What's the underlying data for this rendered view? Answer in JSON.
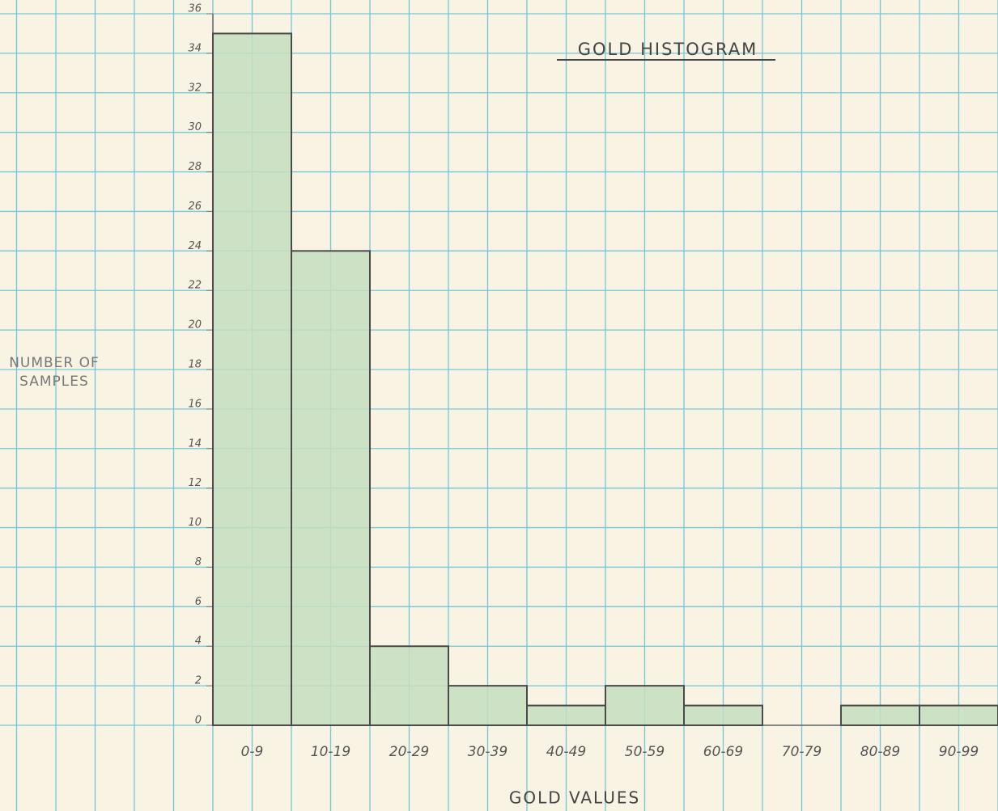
{
  "chart_data": {
    "type": "bar",
    "title": "GOLD HISTOGRAM",
    "y_label": "NUMBER OF SAMPLES",
    "x_label": "GOLD VALUES",
    "categories": [
      "0-9",
      "10-19",
      "20-29",
      "30-39",
      "40-49",
      "50-59",
      "60-69",
      "70-79",
      "80-89",
      "90-99"
    ],
    "values": [
      35,
      24,
      4,
      2,
      1,
      2,
      1,
      0,
      1,
      1
    ],
    "color": "#c6ddc0",
    "ylim": [
      0,
      36
    ],
    "yticks": [
      0,
      2,
      4,
      6,
      8,
      10,
      12,
      14,
      16,
      18,
      20,
      22,
      24,
      26,
      28,
      30,
      32,
      34,
      36
    ],
    "grid": true
  }
}
